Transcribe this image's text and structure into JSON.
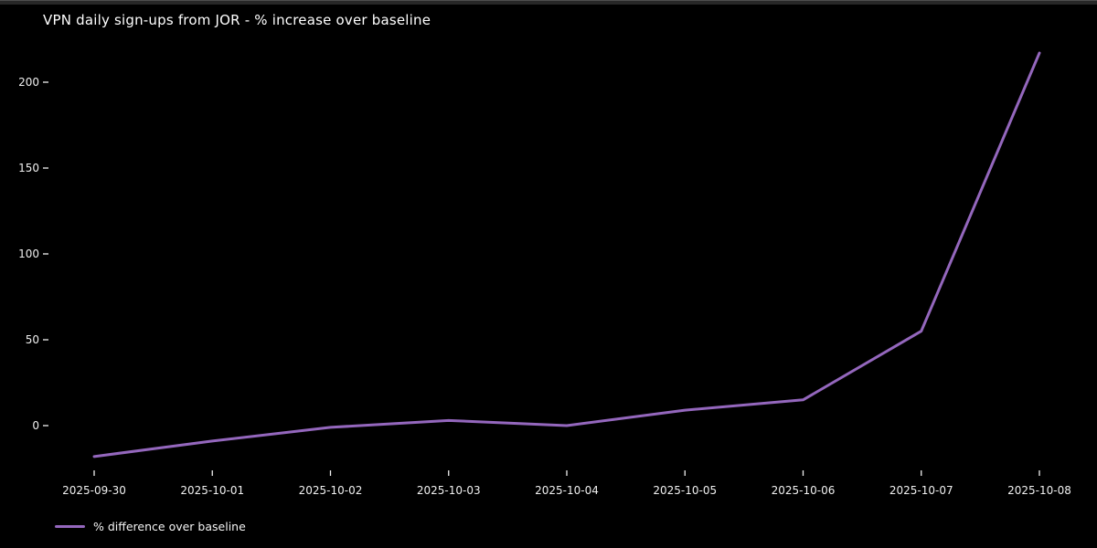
{
  "title": "VPN daily sign-ups from JOR - % increase over baseline",
  "colors": {
    "background": "#000000",
    "line": "#9467bd",
    "text": "#ffffff",
    "tick": "#f0f0f0",
    "top_strip": "#272727"
  },
  "legend": {
    "label": "% difference over baseline"
  },
  "chart_data": {
    "type": "line",
    "title": "VPN daily sign-ups from JOR - % increase over baseline",
    "x": [
      "2025-09-30",
      "2025-10-01",
      "2025-10-02",
      "2025-10-03",
      "2025-10-04",
      "2025-10-05",
      "2025-10-06",
      "2025-10-07",
      "2025-10-08"
    ],
    "series": [
      {
        "name": "% difference over baseline",
        "values": [
          -18,
          -9,
          -1,
          3,
          0,
          9,
          15,
          55,
          217
        ]
      }
    ],
    "xlabel": "",
    "ylabel": "",
    "yticks": [
      0,
      50,
      100,
      150,
      200
    ],
    "ylim": [
      -26,
      224
    ],
    "grid": false,
    "legend_position": "lower-left",
    "line_color": "#9467bd"
  }
}
